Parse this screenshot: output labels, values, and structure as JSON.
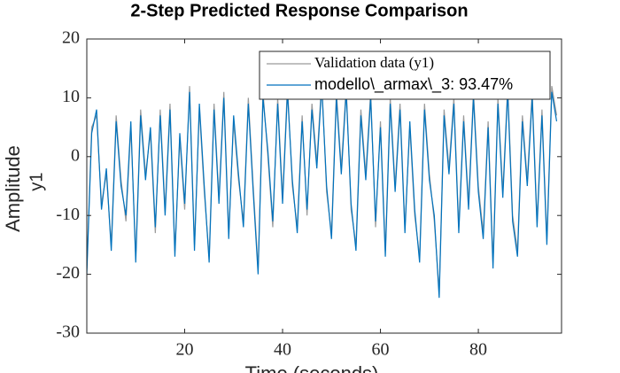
{
  "chart_data": {
    "type": "line",
    "title": "2-Step Predicted Response Comparison",
    "ylabel_outer": "Amplitude",
    "ylabel": "y1",
    "xlabel": "Time (seconds)",
    "xlim": [
      0,
      97
    ],
    "ylim": [
      -30,
      20
    ],
    "xticks": [
      20,
      40,
      60,
      80
    ],
    "yticks": [
      -30,
      -20,
      -10,
      0,
      10,
      20
    ],
    "x": [
      0,
      1,
      2,
      3,
      4,
      5,
      6,
      7,
      8,
      9,
      10,
      11,
      12,
      13,
      14,
      15,
      16,
      17,
      18,
      19,
      20,
      21,
      22,
      23,
      24,
      25,
      26,
      27,
      28,
      29,
      30,
      31,
      32,
      33,
      34,
      35,
      36,
      37,
      38,
      39,
      40,
      41,
      42,
      43,
      44,
      45,
      46,
      47,
      48,
      49,
      50,
      51,
      52,
      53,
      54,
      55,
      56,
      57,
      58,
      59,
      60,
      61,
      62,
      63,
      64,
      65,
      66,
      67,
      68,
      69,
      70,
      71,
      72,
      73,
      74,
      75,
      76,
      77,
      78,
      79,
      80,
      81,
      82,
      83,
      84,
      85,
      86,
      87,
      88,
      89,
      90,
      91,
      92,
      93,
      94,
      95,
      96
    ],
    "series": [
      {
        "name": "Validation data (y1)",
        "color": "#9a9a9a",
        "values": [
          -19,
          5,
          7,
          -8,
          -3,
          -15,
          7,
          -4,
          -11,
          5,
          -17,
          8,
          -3,
          4,
          -13,
          8,
          -9,
          9,
          -16,
          3,
          -9,
          12,
          -15,
          8,
          -6,
          -17,
          9,
          -7,
          11,
          -13,
          6,
          -4,
          -11,
          10,
          -5,
          -19,
          11,
          0,
          -12,
          10,
          -7,
          12,
          -5,
          -12,
          7,
          -10,
          9,
          -1,
          13,
          -6,
          -13,
          11,
          -2,
          12,
          -9,
          -15,
          8,
          -3,
          11,
          -12,
          6,
          -16,
          10,
          -5,
          9,
          -12,
          5,
          -10,
          -17,
          9,
          -3,
          -11,
          -23,
          8,
          -2,
          10,
          -12,
          7,
          -8,
          11,
          -5,
          -13,
          6,
          -18,
          10,
          -6,
          12,
          -10,
          -16,
          7,
          -4,
          11,
          -11,
          8,
          -14,
          12,
          7
        ]
      },
      {
        "name": "modello\\_armax\\_3: 93.47%",
        "color": "#0072bd",
        "values": [
          -20,
          4,
          8,
          -9,
          -2,
          -16,
          6,
          -5,
          -10,
          6,
          -18,
          7,
          -4,
          5,
          -12,
          7,
          -10,
          8,
          -17,
          4,
          -8,
          11,
          -16,
          9,
          -5,
          -18,
          8,
          -8,
          10,
          -14,
          7,
          -3,
          -12,
          9,
          -6,
          -20,
          10,
          1,
          -11,
          9,
          -8,
          11,
          -4,
          -13,
          6,
          -9,
          8,
          -2,
          12,
          -5,
          -14,
          10,
          -3,
          11,
          -8,
          -16,
          7,
          -4,
          10,
          -11,
          5,
          -17,
          9,
          -6,
          8,
          -13,
          6,
          -9,
          -18,
          8,
          -4,
          -10,
          -24,
          7,
          -3,
          9,
          -13,
          6,
          -9,
          10,
          -6,
          -14,
          5,
          -19,
          9,
          -7,
          11,
          -11,
          -17,
          6,
          -5,
          10,
          -12,
          7,
          -15,
          11,
          6
        ]
      }
    ],
    "legend": "upper right"
  }
}
